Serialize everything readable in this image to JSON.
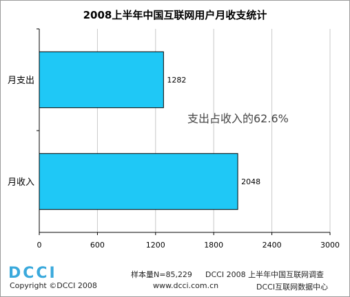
{
  "chart_data": {
    "type": "bar",
    "orientation": "horizontal",
    "title": "2008上半年中国互联网用户月收支统计",
    "categories": [
      "月支出",
      "月收入"
    ],
    "values": [
      1282,
      2048
    ],
    "value_labels": [
      "1282",
      "2048"
    ],
    "xlim": [
      0,
      3000
    ],
    "x_ticks": [
      "0",
      "600",
      "1200",
      "1800",
      "2400",
      "3000"
    ],
    "grid": true,
    "bar_color": "#1fc8f6",
    "annotation": "支出占收入的62.6%"
  },
  "footer": {
    "logo_text": "DCCI",
    "copyright": "Copyright ©DCCI 2008",
    "sample": "样本量N=85,229",
    "source": "DCCI 2008 上半年中国互联网调查",
    "website": "www.dcci.com.cn",
    "center": "DCCI互联网数据中心"
  },
  "colors": {
    "logo": "#3aa9dc",
    "axis": "#000000",
    "grid": "#c8c8c8"
  }
}
